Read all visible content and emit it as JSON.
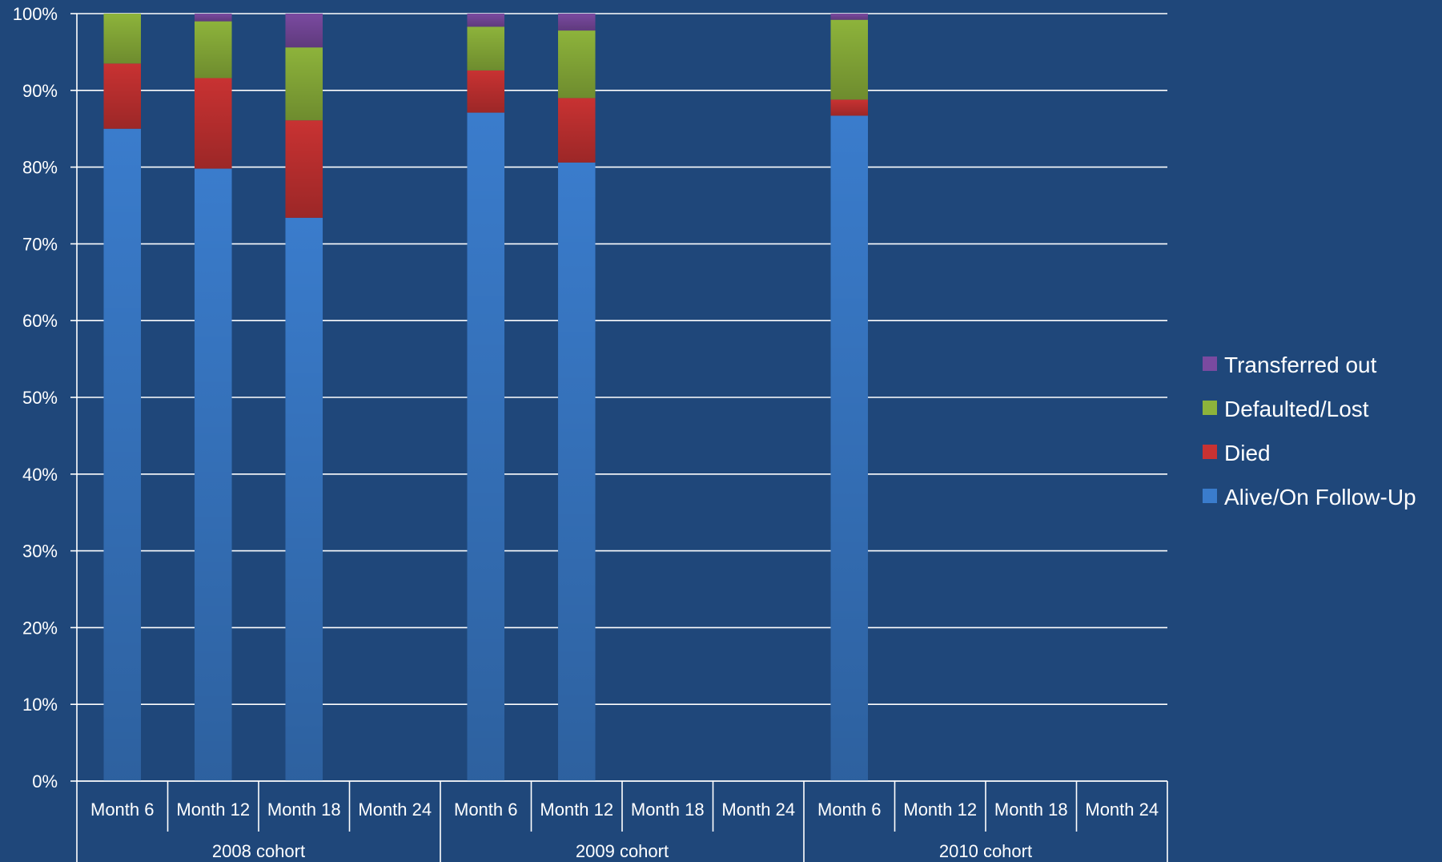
{
  "chart_data": {
    "type": "bar",
    "stacked": true,
    "percent_stacked": true,
    "ylim": [
      0,
      100
    ],
    "yticks": [
      "0%",
      "10%",
      "20%",
      "30%",
      "40%",
      "50%",
      "60%",
      "70%",
      "80%",
      "90%",
      "100%"
    ],
    "ytick_values": [
      0,
      10,
      20,
      30,
      40,
      50,
      60,
      70,
      80,
      90,
      100
    ],
    "grid": true,
    "legend_position": "right",
    "groups": [
      {
        "label": "2008 cohort",
        "categories": [
          "Month 6",
          "Month 12",
          "Month 18",
          "Month 24"
        ]
      },
      {
        "label": "2009 cohort",
        "categories": [
          "Month 6",
          "Month 12",
          "Month 18",
          "Month 24"
        ]
      },
      {
        "label": "2010 cohort",
        "categories": [
          "Month 6",
          "Month 12",
          "Month 18",
          "Month 24"
        ]
      }
    ],
    "series": [
      {
        "name": "Alive/On Follow-Up",
        "color": "#3a7ccc",
        "values": [
          85.0,
          79.8,
          73.4,
          null,
          87.1,
          80.6,
          null,
          null,
          86.7,
          null,
          null,
          null
        ]
      },
      {
        "name": "Died",
        "color": "#c83232",
        "values": [
          8.5,
          11.8,
          12.7,
          null,
          5.5,
          8.4,
          null,
          null,
          2.1,
          null,
          null,
          null
        ]
      },
      {
        "name": "Defaulted/Lost",
        "color": "#8db33b",
        "values": [
          6.5,
          7.4,
          9.5,
          null,
          5.7,
          8.8,
          null,
          null,
          10.4,
          null,
          null,
          null
        ]
      },
      {
        "name": "Transferred out",
        "color": "#7a4aa0",
        "values": [
          0.0,
          1.0,
          4.4,
          null,
          1.7,
          2.2,
          null,
          null,
          0.8,
          null,
          null,
          null
        ]
      }
    ],
    "legend_order": [
      "Transferred out",
      "Defaulted/Lost",
      "Died",
      "Alive/On Follow-Up"
    ],
    "gridline_color": "#ffffff",
    "text_color": "#ffffff",
    "background_color": "#1f477a"
  }
}
